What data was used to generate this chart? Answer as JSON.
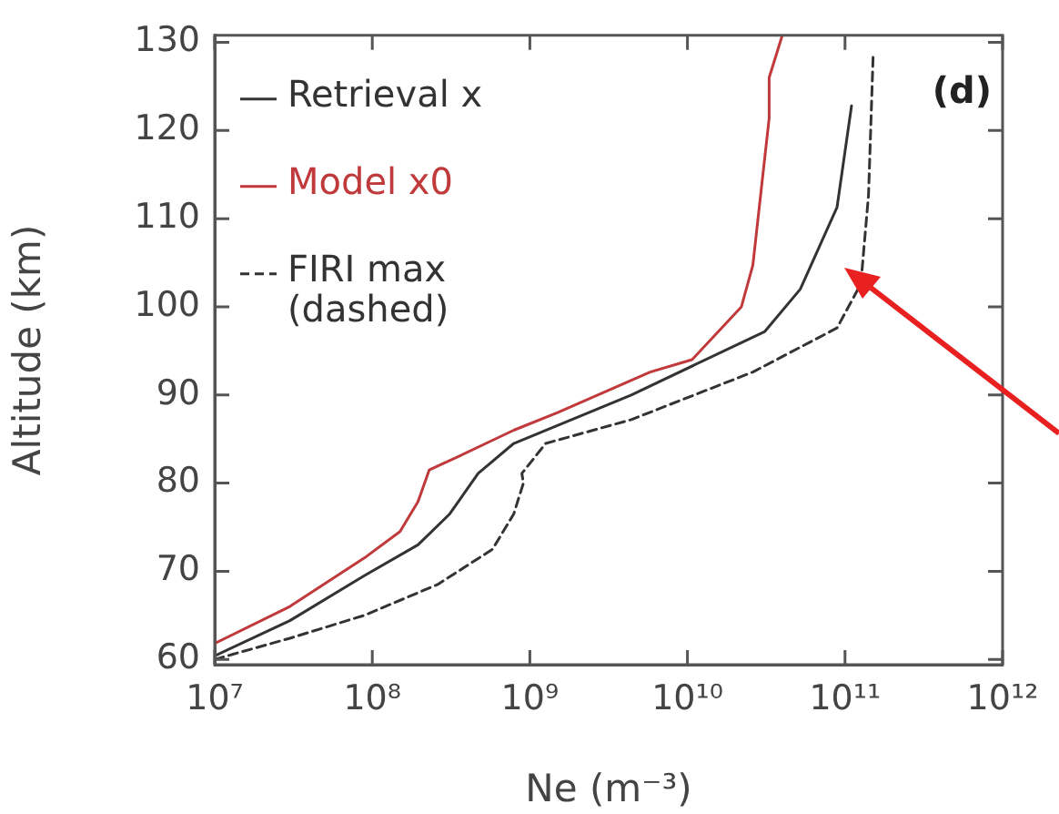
{
  "chart_data": {
    "type": "line",
    "xlabel": "Ne (m⁻³)",
    "ylabel": "Altitude (km)",
    "annotations": [
      "(d)"
    ],
    "log": "x",
    "grid": false,
    "legend": "top left",
    "marker": "none",
    "xlim": [
      10000000.0,
      1000000000000.0
    ],
    "xticks": [
      {
        "value": 10000000.0,
        "label": "10⁷"
      },
      {
        "value": 100000000.0,
        "label": "10⁸"
      },
      {
        "value": 1000000000.0,
        "label": "10⁹"
      },
      {
        "value": 10000000000.0,
        "label": "10¹⁰"
      },
      {
        "value": 100000000000.0,
        "label": "10¹¹"
      },
      {
        "value": 1000000000000.0,
        "label": "10¹²"
      }
    ],
    "ylim": [
      59.4,
      130.8
    ],
    "yticks": [
      60,
      70,
      80,
      90,
      100,
      110,
      120,
      130
    ],
    "series": [
      {
        "name": "Retrieval x",
        "color": "#333333",
        "line_style": "solid",
        "x": [
          10000000.0,
          30000000.0,
          89000000.0,
          195000000.0,
          310000000.0,
          470000000.0,
          790000000.0,
          4400000000.0,
          31000000000.0,
          52000000000.0,
          89000000000.0,
          110000000000.0
        ],
        "values": [
          60.4,
          64.4,
          69.5,
          73,
          76.5,
          81.1,
          84.5,
          90,
          97.2,
          102,
          111.3,
          122.8
        ]
      },
      {
        "name": "Model x0",
        "color": "#c0393b",
        "line_style": "solid",
        "x": [
          10000000.0,
          30000000.0,
          89000000.0,
          150000000.0,
          195000000.0,
          230000000.0,
          360000000.0,
          790000000.0,
          1500000000.0,
          5800000000.0,
          10700000000.0,
          22000000000.0,
          26000000000.0,
          33000000000.0,
          33000000000.0,
          40000000000.0
        ],
        "values": [
          61.8,
          66,
          71.5,
          74.5,
          77.9,
          81.5,
          83.1,
          86,
          88,
          92.6,
          94,
          100,
          104.7,
          121.4,
          126,
          130.8
        ]
      },
      {
        "name": "FIRI max (dashed)",
        "color": "#333333",
        "line_style": "dashed",
        "x": [
          10000000.0,
          30000000.0,
          89000000.0,
          260000000.0,
          580000000.0,
          790000000.0,
          910000000.0,
          890000000.0,
          1260000000.0,
          4400000000.0,
          26000000000.0,
          89000000000.0,
          126000000000.0,
          141000000000.0,
          151000000000.0
        ],
        "values": [
          60,
          62.4,
          65,
          68.5,
          72.5,
          76.5,
          80,
          81.1,
          84.5,
          87.2,
          92.6,
          97.6,
          102.6,
          112.7,
          128.8
        ]
      }
    ]
  }
}
